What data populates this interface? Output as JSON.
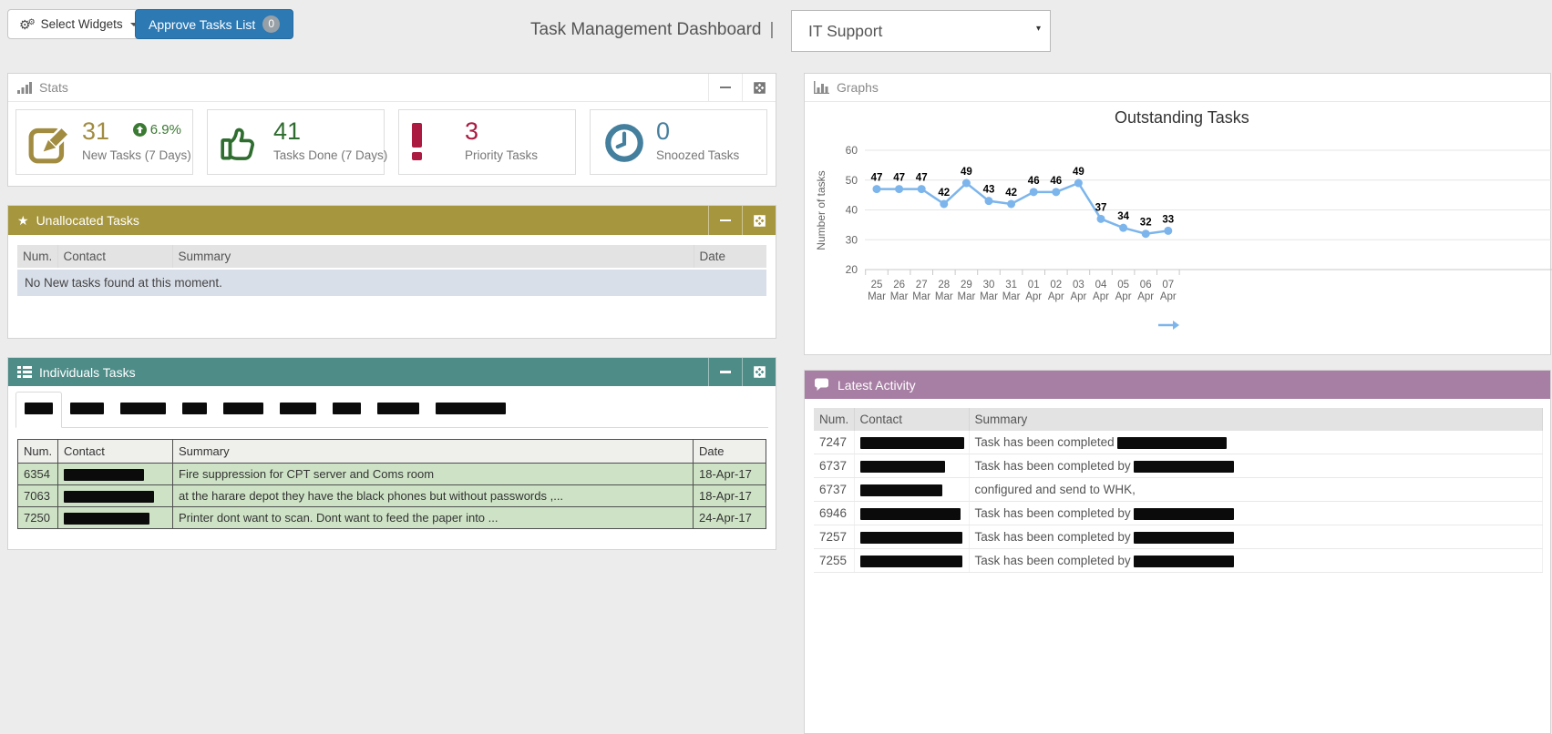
{
  "topbar": {
    "select_widgets": {
      "label": "Select Widgets"
    },
    "approve_button": {
      "label": "Approve Tasks List",
      "badge": "0"
    },
    "title": "Task Management Dashboard",
    "title_separator": "|",
    "department_select": {
      "value": "IT Support"
    }
  },
  "stats_panel": {
    "title": "Stats",
    "cards": [
      {
        "icon": "edit-icon",
        "value": "31",
        "trend": "6.9%",
        "label": "New Tasks (7 Days)"
      },
      {
        "icon": "thumbs-up-icon",
        "value": "41",
        "label": "Tasks Done (7 Days)"
      },
      {
        "icon": "exclamation-icon",
        "value": "3",
        "label": "Priority Tasks"
      },
      {
        "icon": "clock-icon",
        "value": "0",
        "label": "Snoozed Tasks"
      }
    ]
  },
  "unallocated_panel": {
    "title": "Unallocated Tasks",
    "columns": [
      "Num.",
      "Contact",
      "Summary",
      "Date"
    ],
    "empty_message": "No New tasks found at this moment."
  },
  "individuals_panel": {
    "title": "Individuals Tasks",
    "tabs_redacted_widths": [
      31,
      37,
      50,
      27,
      44,
      40,
      31,
      46,
      77
    ],
    "columns": [
      "Num.",
      "Contact",
      "Summary",
      "Date"
    ],
    "rows": [
      {
        "num": "6354",
        "contact_redacted_width": 88,
        "summary": "Fire suppression for CPT server and Coms room",
        "date": "18-Apr-17"
      },
      {
        "num": "7063",
        "contact_redacted_width": 99,
        "summary": "at the harare depot they have the black phones but without passwords ,...",
        "date": "18-Apr-17"
      },
      {
        "num": "7250",
        "contact_redacted_width": 94,
        "summary": "Printer dont want to scan. Dont want to feed the paper into ...",
        "date": "24-Apr-17"
      }
    ]
  },
  "graphs_panel": {
    "title": "Graphs",
    "chart_data": {
      "type": "line",
      "title": "Outstanding Tasks",
      "ylabel": "Number of tasks",
      "categories": [
        "25 Mar",
        "26 Mar",
        "27 Mar",
        "28 Mar",
        "29 Mar",
        "30 Mar",
        "31 Mar",
        "01 Apr",
        "02 Apr",
        "03 Apr",
        "04 Apr",
        "05 Apr",
        "06 Apr",
        "07 Apr"
      ],
      "values": [
        47,
        47,
        47,
        42,
        49,
        43,
        42,
        46,
        46,
        49,
        37,
        34,
        32,
        33
      ],
      "ylim": [
        20,
        60
      ],
      "yticks": [
        20,
        30,
        40,
        50,
        60
      ],
      "line_color": "#7cb5ec",
      "grid": true,
      "data_labels": true,
      "legend_position": "bottom-right"
    }
  },
  "latest_panel": {
    "title": "Latest Activity",
    "columns": [
      "Num.",
      "Contact",
      "Summary"
    ],
    "rows": [
      {
        "num": "7247",
        "contact_redacted_width": 114,
        "summary": "Task has been completed",
        "summary_redacted_width": 120
      },
      {
        "num": "6737",
        "contact_redacted_width": 93,
        "summary": "Task has been completed by",
        "summary_redacted_width": 110
      },
      {
        "num": "6737",
        "contact_redacted_width": 90,
        "summary": "configured and send to WHK,",
        "summary_redacted_width": 0
      },
      {
        "num": "6946",
        "contact_redacted_width": 110,
        "summary": "Task has been completed by",
        "summary_redacted_width": 110
      },
      {
        "num": "7257",
        "contact_redacted_width": 112,
        "summary": "Task has been completed by",
        "summary_redacted_width": 110
      },
      {
        "num": "7255",
        "contact_redacted_width": 112,
        "summary": "Task has been completed by",
        "summary_redacted_width": 110
      }
    ]
  },
  "colors": {
    "gold_header": "#a6963e",
    "teal_header": "#4e8c88",
    "purple_header": "#a77ea4",
    "button_blue": "#2c79b4",
    "stat_gold": "#a18c41",
    "stat_green": "#2f6c2f",
    "stat_red": "#ab1a40",
    "stat_blue": "#447f9e",
    "trend_green": "#3b7a33",
    "chart_line": "#7cb5ec",
    "green_row": "#cee3c6",
    "blue_row": "#d9dfe9"
  }
}
